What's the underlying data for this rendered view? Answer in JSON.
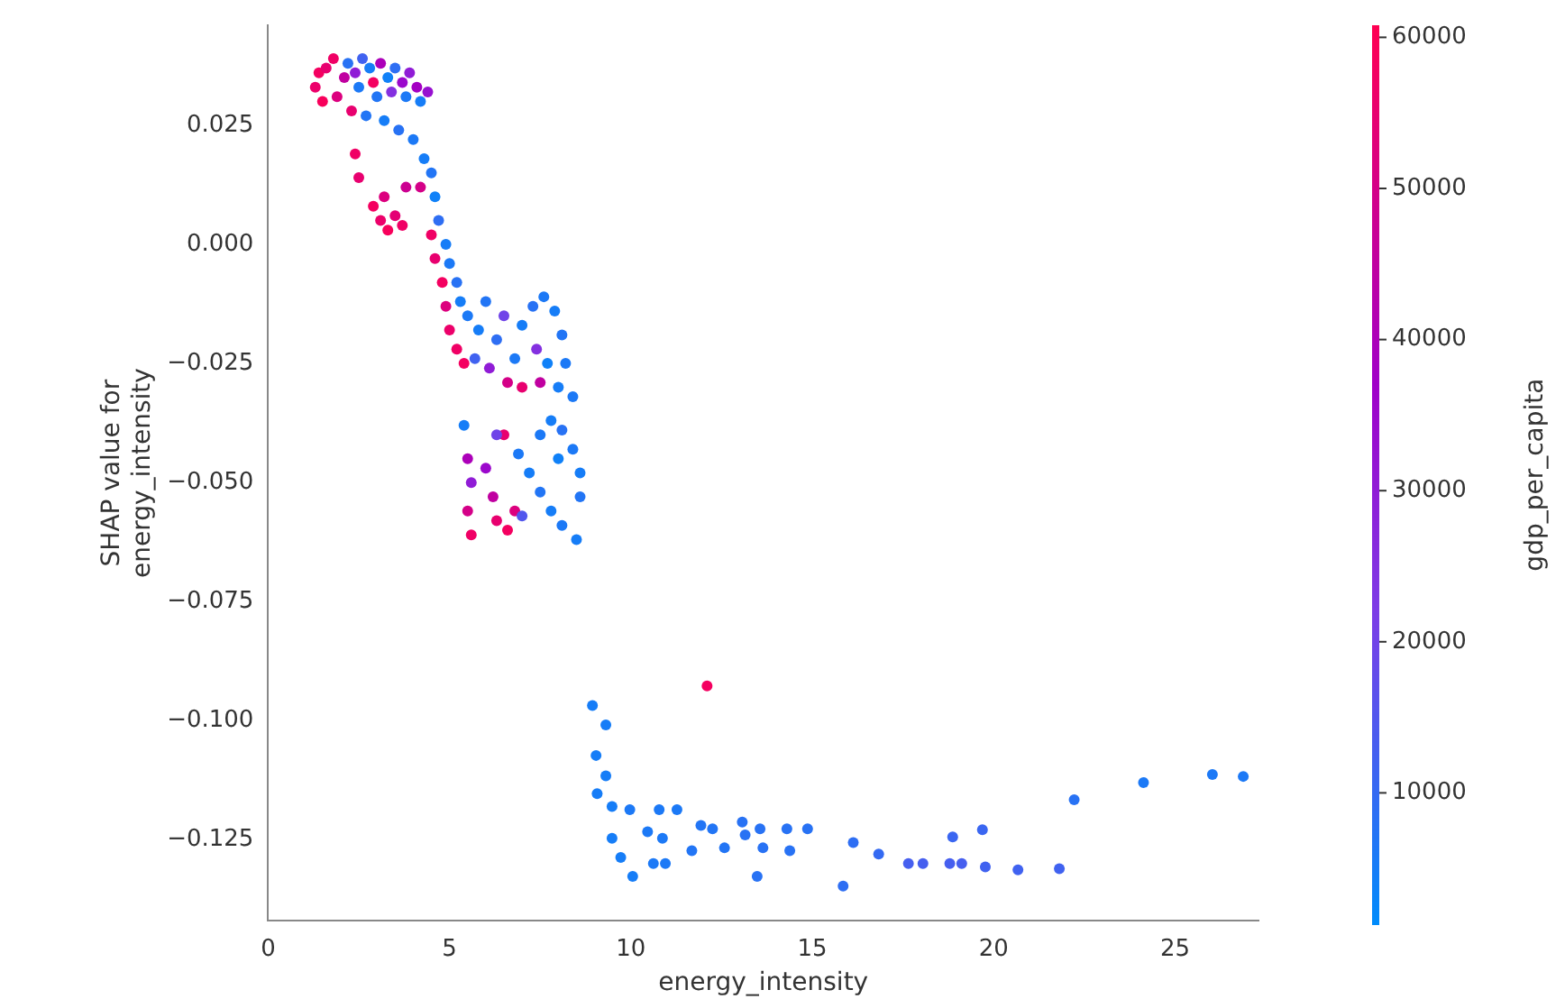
{
  "chart_data": {
    "type": "scatter",
    "xlabel": "energy_intensity",
    "ylabel": "SHAP value for energy_intensity",
    "clabel": "gdp_per_capita",
    "xlim": [
      0,
      27.3
    ],
    "xticks": [
      0,
      5,
      10,
      15,
      20,
      25
    ],
    "ylim": [
      -0.142,
      0.046
    ],
    "yticks": [
      {
        "value": 0.025,
        "label": "0.025"
      },
      {
        "value": 0,
        "label": "0.000"
      },
      {
        "value": -0.025,
        "label": "−0.025"
      },
      {
        "value": -0.05,
        "label": "−0.050"
      },
      {
        "value": -0.075,
        "label": "−0.075"
      },
      {
        "value": -0.1,
        "label": "−0.100"
      },
      {
        "value": -0.125,
        "label": "−0.125"
      }
    ],
    "clim": [
      1300,
      60800
    ],
    "cticks": [
      10000,
      20000,
      30000,
      40000,
      50000,
      60000
    ],
    "grid": false,
    "legend": false,
    "marker": "circle",
    "x": [
      1.3,
      1.4,
      1.6,
      1.8,
      1.5,
      1.9,
      2.1,
      2.2,
      2.4,
      2.5,
      2.6,
      2.8,
      2.9,
      3.0,
      3.1,
      3.3,
      3.4,
      3.5,
      3.7,
      3.8,
      3.9,
      4.1,
      4.2,
      4.4,
      2.3,
      2.7,
      3.2,
      3.6,
      2.4,
      2.5,
      2.9,
      3.1,
      3.3,
      3.5,
      3.7,
      3.2,
      3.8,
      4.0,
      4.3,
      4.5,
      4.6,
      4.7,
      4.9,
      5.0,
      5.2,
      5.3,
      4.5,
      4.6,
      4.8,
      4.9,
      5.0,
      5.2,
      5.4,
      4.2,
      5.5,
      5.8,
      6.0,
      6.3,
      6.5,
      6.8,
      7.0,
      7.3,
      7.6,
      7.9,
      8.1,
      8.2,
      7.7,
      7.4,
      6.1,
      5.7,
      6.6,
      7.0,
      7.5,
      8.0,
      8.4,
      5.4,
      5.5,
      5.6,
      5.5,
      5.6,
      6.0,
      6.2,
      6.3,
      6.6,
      6.8,
      6.5,
      6.9,
      7.2,
      7.5,
      7.8,
      8.1,
      8.5,
      7.5,
      7.8,
      8.1,
      8.4,
      8.6,
      8.6,
      8.0,
      6.3,
      7.0,
      8.94,
      9.31,
      9.04,
      9.31,
      9.07,
      9.48,
      9.97,
      10.78,
      11.27,
      9.48,
      9.72,
      10.05,
      10.62,
      10.95,
      10.46,
      10.87,
      11.68,
      11.93,
      12.25,
      12.58,
      13.07,
      13.15,
      13.48,
      13.56,
      13.64,
      14.3,
      14.38,
      14.87,
      15.85,
      16.13,
      16.83,
      17.65,
      18.05,
      18.79,
      19.12,
      19.77,
      18.87,
      19.69,
      20.67,
      21.81,
      22.22,
      24.13,
      26.03,
      26.88,
      12.1
    ],
    "values": [
      0.033,
      0.036,
      0.037,
      0.039,
      0.03,
      0.031,
      0.035,
      0.038,
      0.036,
      0.033,
      0.039,
      0.037,
      0.034,
      0.031,
      0.038,
      0.035,
      0.032,
      0.037,
      0.034,
      0.031,
      0.036,
      0.033,
      0.03,
      0.032,
      0.028,
      0.027,
      0.026,
      0.024,
      0.019,
      0.014,
      0.008,
      0.005,
      0.003,
      0.006,
      0.004,
      0.01,
      0.012,
      0.022,
      0.018,
      0.015,
      0.01,
      0.005,
      0.0,
      -0.004,
      -0.008,
      -0.012,
      0.002,
      -0.003,
      -0.008,
      -0.013,
      -0.018,
      -0.022,
      -0.025,
      0.012,
      -0.015,
      -0.018,
      -0.012,
      -0.02,
      -0.015,
      -0.024,
      -0.017,
      -0.013,
      -0.011,
      -0.014,
      -0.019,
      -0.025,
      -0.025,
      -0.022,
      -0.026,
      -0.024,
      -0.029,
      -0.03,
      -0.029,
      -0.03,
      -0.032,
      -0.038,
      -0.045,
      -0.05,
      -0.056,
      -0.061,
      -0.047,
      -0.053,
      -0.058,
      -0.06,
      -0.056,
      -0.04,
      -0.044,
      -0.048,
      -0.052,
      -0.056,
      -0.059,
      -0.062,
      -0.04,
      -0.037,
      -0.039,
      -0.043,
      -0.048,
      -0.053,
      -0.045,
      -0.04,
      -0.057,
      -0.0968,
      -0.1009,
      -0.1073,
      -0.1116,
      -0.1153,
      -0.118,
      -0.1187,
      -0.1187,
      -0.1187,
      -0.1247,
      -0.1287,
      -0.1327,
      -0.13,
      -0.13,
      -0.1233,
      -0.1247,
      -0.1273,
      -0.122,
      -0.1227,
      -0.1267,
      -0.1213,
      -0.124,
      -0.1327,
      -0.1227,
      -0.1267,
      -0.1227,
      -0.1273,
      -0.1227,
      -0.1347,
      -0.1256,
      -0.128,
      -0.13,
      -0.13,
      -0.13,
      -0.13,
      -0.1307,
      -0.1244,
      -0.1229,
      -0.1313,
      -0.1311,
      -0.1166,
      -0.113,
      -0.1113,
      -0.1117,
      -0.0927
    ],
    "cvalues": [
      56000,
      58000,
      55000,
      57000,
      59000,
      52000,
      45000,
      8000,
      30000,
      6000,
      12000,
      5000,
      58000,
      7000,
      40000,
      4000,
      25000,
      9000,
      35000,
      6000,
      30000,
      38000,
      5000,
      33000,
      55000,
      7000,
      5000,
      8000,
      57000,
      55000,
      58000,
      56000,
      59000,
      54000,
      57000,
      52000,
      48000,
      6000,
      5000,
      7000,
      4000,
      9000,
      5000,
      6000,
      8000,
      5000,
      57000,
      55000,
      58000,
      52000,
      56000,
      57000,
      58000,
      50000,
      6000,
      5000,
      7000,
      9000,
      20000,
      6000,
      5000,
      8000,
      6000,
      5000,
      7000,
      6000,
      4000,
      25000,
      30000,
      12000,
      50000,
      55000,
      45000,
      5000,
      6000,
      5000,
      40000,
      30000,
      50000,
      57000,
      35000,
      45000,
      55000,
      58000,
      52000,
      55000,
      6000,
      5000,
      7000,
      5000,
      6000,
      5000,
      6000,
      5000,
      8000,
      6000,
      5000,
      7000,
      4000,
      20000,
      15000,
      5000,
      5000,
      5000,
      5000,
      5000,
      5000,
      6000,
      6000,
      6000,
      5000,
      5000,
      5000,
      6000,
      6000,
      6000,
      6000,
      7000,
      7000,
      7000,
      7000,
      8000,
      8000,
      8000,
      8000,
      8000,
      8000,
      8000,
      8000,
      9000,
      9000,
      10000,
      13000,
      13000,
      13000,
      13000,
      12000,
      11000,
      11000,
      12000,
      12000,
      8000,
      6000,
      6000,
      6000,
      58000
    ]
  }
}
